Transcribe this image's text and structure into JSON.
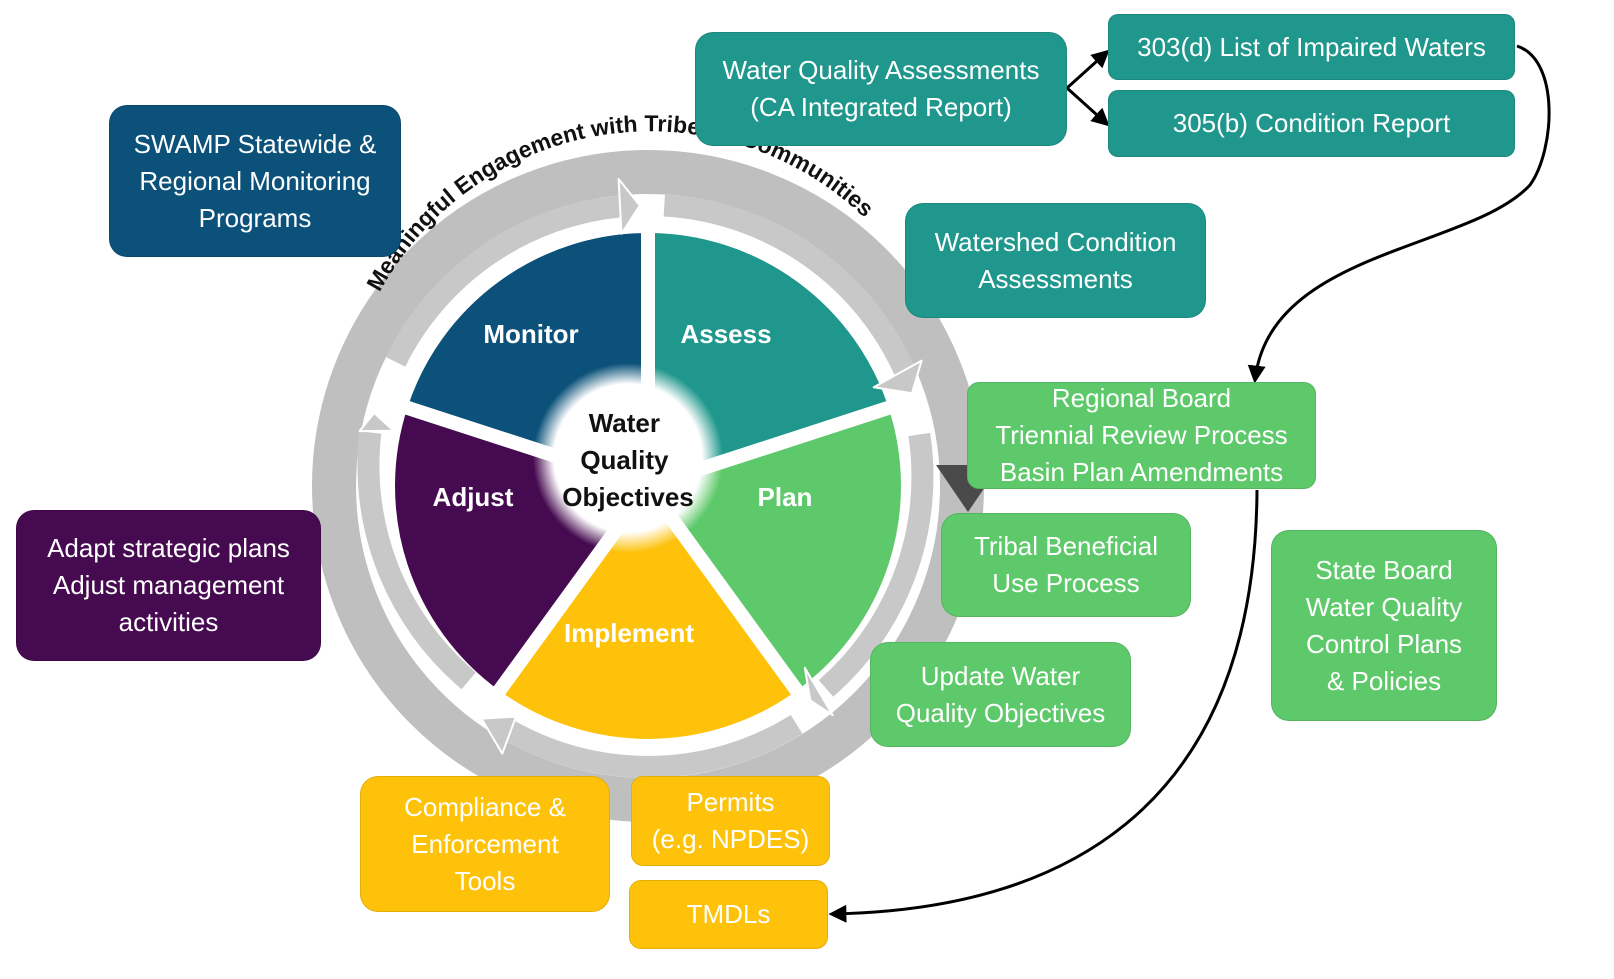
{
  "cycle": {
    "center_label_lines": [
      "Water",
      "Quality",
      "Objectives"
    ],
    "ring_text": "Meaningful Engagement with Tribes & Communities",
    "stages": {
      "monitor": "Monitor",
      "assess": "Assess",
      "plan": "Plan",
      "implement": "Implement",
      "adjust": "Adjust"
    }
  },
  "boxes": {
    "swamp": [
      "SWAMP Statewide &",
      "Regional Monitoring",
      "Programs"
    ],
    "wqa": [
      "Water Quality Assessments",
      "(CA Integrated Report)"
    ],
    "list303d": [
      "303(d) List of Impaired Waters"
    ],
    "report305b": [
      "305(b) Condition Report"
    ],
    "watershed": [
      "Watershed Condition",
      "Assessments"
    ],
    "triennial": [
      "Regional Board",
      "Triennial Review Process",
      "Basin Plan Amendments"
    ],
    "tribal": [
      "Tribal Beneficial",
      "Use Process"
    ],
    "state_board": [
      "State Board",
      "Water Quality",
      "Control Plans",
      "& Policies"
    ],
    "update_wqo": [
      "Update Water",
      "Quality Objectives"
    ],
    "adapt": [
      "Adapt strategic plans",
      "Adjust management",
      "activities"
    ],
    "compliance": [
      "Compliance &",
      "Enforcement",
      "Tools"
    ],
    "permits": [
      "Permits",
      "(e.g. NPDES)"
    ],
    "tmdls": [
      "TMDLs"
    ]
  },
  "colors": {
    "monitor": "#0b5179",
    "assess": "#1f978c",
    "plan": "#5ec96a",
    "implement": "#fec20a",
    "adjust": "#460a50",
    "ring": "#bfbfbf"
  }
}
